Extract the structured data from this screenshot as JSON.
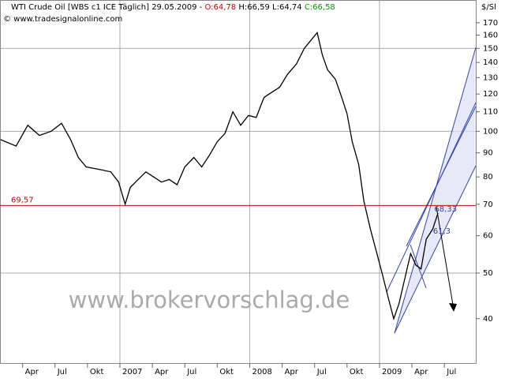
{
  "chart_data": {
    "type": "line",
    "title": "WTI Crude Oil [WBS c1 ICE  Täglich] 29.05.2009 -",
    "open": "O:64,78",
    "high": "H:66,59",
    "low": "L:64,74",
    "close": "C:66,58",
    "copyright": "© www.tradesignalonline.com",
    "unit": "$/Sl",
    "watermark": "www.brokervorschlag.de",
    "log_scale": true,
    "x": [
      2006.08,
      2006.2,
      2006.29,
      2006.38,
      2006.47,
      2006.55,
      2006.62,
      2006.68,
      2006.74,
      2006.84,
      2006.93,
      2006.99,
      2007.04,
      2007.08,
      2007.14,
      2007.2,
      2007.26,
      2007.32,
      2007.38,
      2007.44,
      2007.5,
      2007.57,
      2007.63,
      2007.69,
      2007.75,
      2007.81,
      2007.87,
      2007.93,
      2007.99,
      2008.05,
      2008.11,
      2008.17,
      2008.23,
      2008.29,
      2008.36,
      2008.42,
      2008.48,
      2008.52,
      2008.56,
      2008.6,
      2008.66,
      2008.7,
      2008.75,
      2008.79,
      2008.84,
      2008.88,
      2008.93,
      2008.98,
      2009.02,
      2009.07,
      2009.11,
      2009.15,
      2009.19,
      2009.24,
      2009.28,
      2009.32,
      2009.36,
      2009.41,
      2009.45
    ],
    "series": [
      {
        "name": "WTI Crude Oil",
        "color": "#000000",
        "values": [
          96,
          93,
          103,
          98,
          100,
          104,
          96,
          88,
          84,
          83,
          82,
          78,
          70,
          76,
          79,
          82,
          80,
          78,
          79,
          77,
          84,
          88,
          84,
          89,
          95,
          99,
          110,
          103,
          108,
          107,
          118,
          121,
          124,
          132,
          139,
          150,
          157,
          162,
          145,
          135,
          129,
          120,
          109,
          95,
          85,
          71,
          62,
          55,
          50,
          44,
          40,
          43,
          48,
          55,
          52,
          51,
          59,
          62,
          67
        ]
      }
    ],
    "xlim": [
      2006.076,
      2009.742
    ],
    "ylim": [
      32.2,
      190
    ],
    "xticks": [
      {
        "value": 2006.25,
        "label": "Apr"
      },
      {
        "value": 2006.5,
        "label": "Jul"
      },
      {
        "value": 2006.75,
        "label": "Okt"
      },
      2007,
      {
        "value": 2007.25,
        "label": "Apr"
      },
      {
        "value": 2007.5,
        "label": "Jul"
      },
      {
        "value": 2007.75,
        "label": "Okt"
      },
      2008,
      {
        "value": 2008.25,
        "label": "Apr"
      },
      {
        "value": 2008.5,
        "label": "Jul"
      },
      {
        "value": 2008.75,
        "label": "Okt"
      },
      2009,
      {
        "value": 2009.25,
        "label": "Apr"
      },
      {
        "value": 2009.5,
        "label": "Jul"
      }
    ],
    "yticks": [
      170,
      160,
      150,
      140,
      130,
      120,
      110,
      100,
      90,
      80,
      70,
      60,
      50,
      40
    ],
    "ygrid": [
      150,
      100,
      50
    ],
    "hline": {
      "value": 69.57,
      "label": "69,57",
      "color": "#cc0000"
    },
    "annotations": [
      {
        "text": "68,33",
        "x": 2009.41,
        "value": 68.33
      },
      {
        "text": "61,3",
        "x": 2009.4,
        "value": 61.3
      }
    ]
  }
}
